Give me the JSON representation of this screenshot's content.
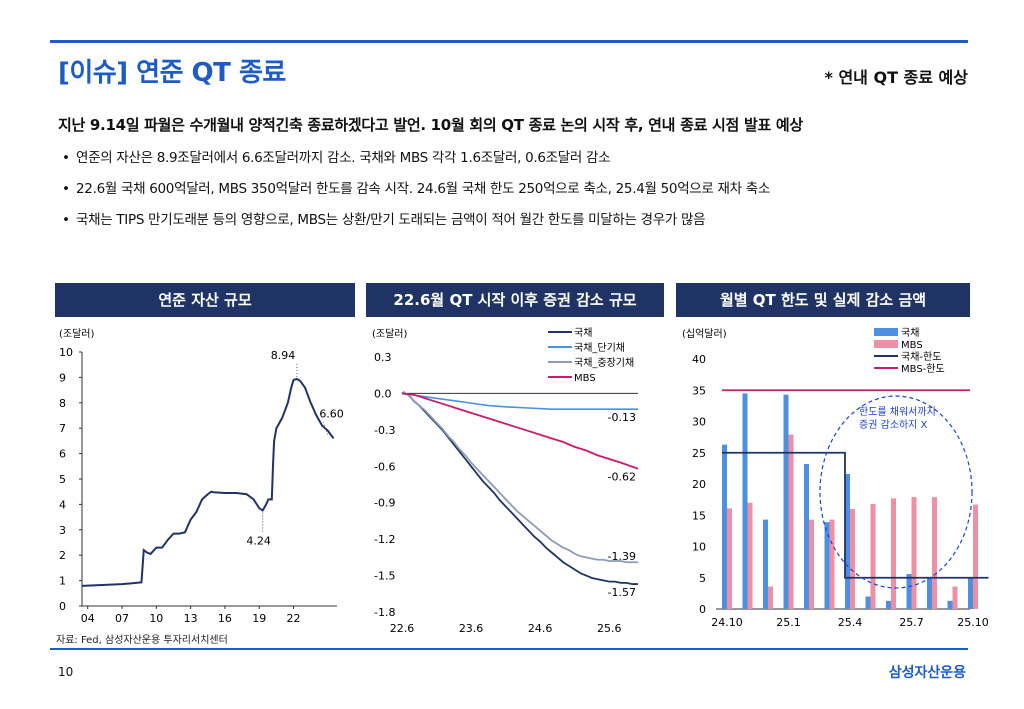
{
  "title": "[이슈] 연준 QT 종료",
  "note": "* 연내 QT 종료 예상",
  "lead": "지난 9.14일 파월은 수개월내 양적긴축 종료하겠다고 발언. 10월 회의 QT 종료 논의 시작 후, 연내 종료 시점 발표 예상",
  "bullets": [
    "연준의 자산은 8.9조달러에서 6.6조달러까지 감소. 국채와 MBS 각각 1.6조달러, 0.6조달러 감소",
    "22.6월 국채 600억달러, MBS 350억달러 한도를 감속 시작. 24.6월 국채 한도 250억으로 축소, 25.4월 50억으로 재차 축소",
    "국채는 TIPS 만기도래분 등의 영향으로, MBS는 상환/만기 도래되는 금액이 적어 월간 한도를 미달하는 경우가 많음"
  ],
  "source": "자료: Fed, 삼성자산운용 투자리서치센터",
  "page_number": "10",
  "brand": "삼성자산운용",
  "colors": {
    "accent": "#1d5bc7",
    "header_bg": "#1f3365",
    "navy": "#1f3365",
    "light_blue": "#4d8fe0",
    "pink": "#ee8fa4",
    "magenta": "#c81d6e",
    "gray_blue": "#8c9bb8"
  },
  "chart_data": [
    {
      "type": "line",
      "title": "연준 자산 규모",
      "unit": "(조달러)",
      "x_ticks": [
        "04",
        "07",
        "10",
        "13",
        "16",
        "19",
        "22"
      ],
      "y_ticks": [
        "0",
        "1",
        "2",
        "3",
        "4",
        "5",
        "6",
        "7",
        "8",
        "9",
        "10"
      ],
      "ylim": [
        0,
        10
      ],
      "xlim": [
        2003.5,
        2025.8
      ],
      "series": [
        {
          "x": [
            2003.5,
            2005,
            2007,
            2008.0,
            2008.7,
            2008.9,
            2009.2,
            2009.5,
            2010,
            2010.5,
            2011,
            2011.5,
            2012,
            2012.5,
            2013,
            2013.5,
            2014,
            2014.5,
            2014.8,
            2015,
            2016,
            2017,
            2017.9,
            2018.5,
            2019.0,
            2019.3,
            2019.6,
            2019.8,
            2020.1,
            2020.2,
            2020.3,
            2020.5,
            2021,
            2021.5,
            2021.8,
            2022.0,
            2022.3,
            2022.6,
            2023,
            2023.5,
            2024,
            2024.5,
            2025,
            2025.5
          ],
          "y": [
            0.79,
            0.82,
            0.86,
            0.9,
            0.93,
            2.2,
            2.1,
            2.05,
            2.3,
            2.3,
            2.6,
            2.85,
            2.85,
            2.9,
            3.4,
            3.7,
            4.2,
            4.4,
            4.5,
            4.48,
            4.45,
            4.45,
            4.4,
            4.2,
            3.85,
            3.76,
            4.0,
            4.2,
            4.2,
            5.5,
            6.5,
            7.0,
            7.4,
            8.0,
            8.6,
            8.9,
            8.94,
            8.85,
            8.6,
            8.0,
            7.5,
            7.1,
            6.9,
            6.6
          ]
        }
      ],
      "annotations": [
        "8.94",
        "6.60",
        "4.24"
      ]
    },
    {
      "type": "line",
      "title": "22.6월 QT 시작 이후 증권 감소 규모",
      "unit": "(조달러)",
      "x_ticks": [
        "22.6",
        "23.6",
        "24.6",
        "25.6"
      ],
      "y_ticks": [
        "0.3",
        "0.0",
        "-0.3",
        "-0.6",
        "-0.9",
        "-1.2",
        "-1.5",
        "-1.8"
      ],
      "ylim": [
        -1.8,
        0.3
      ],
      "series": [
        {
          "name": "국채",
          "x": [
            0,
            0.3,
            0.5,
            1,
            1.5,
            2,
            3,
            4,
            5,
            6,
            7,
            8,
            9,
            10,
            11,
            12,
            13,
            14,
            15,
            16,
            17,
            18,
            19,
            20,
            21,
            22,
            23,
            24,
            25,
            26,
            27,
            28,
            29,
            30,
            31,
            32,
            33,
            34,
            35,
            36,
            37,
            38,
            39,
            40,
            41
          ],
          "y": [
            0,
            0.01,
            0,
            -0.01,
            -0.03,
            -0.06,
            -0.1,
            -0.15,
            -0.2,
            -0.25,
            -0.3,
            -0.36,
            -0.42,
            -0.48,
            -0.54,
            -0.6,
            -0.66,
            -0.72,
            -0.77,
            -0.82,
            -0.88,
            -0.93,
            -0.98,
            -1.03,
            -1.08,
            -1.13,
            -1.18,
            -1.22,
            -1.27,
            -1.31,
            -1.35,
            -1.39,
            -1.42,
            -1.45,
            -1.48,
            -1.5,
            -1.52,
            -1.53,
            -1.54,
            -1.55,
            -1.55,
            -1.56,
            -1.56,
            -1.57,
            -1.57
          ]
        },
        {
          "name": "국채_단기채",
          "x": [
            0,
            3,
            6,
            9,
            12,
            15,
            18,
            22,
            26,
            30,
            35,
            41
          ],
          "y": [
            0,
            -0.02,
            -0.04,
            -0.06,
            -0.08,
            -0.1,
            -0.11,
            -0.12,
            -0.13,
            -0.13,
            -0.13,
            -0.13
          ]
        },
        {
          "name": "국채_중장기채",
          "x": [
            0,
            0.3,
            0.5,
            1,
            1.5,
            2,
            3,
            4,
            5,
            6,
            7,
            8,
            9,
            10,
            11,
            12,
            13,
            14,
            15,
            16,
            17,
            18,
            19,
            20,
            21,
            22,
            23,
            24,
            25,
            26,
            27,
            28,
            29,
            30,
            31,
            32,
            33,
            34,
            35,
            36,
            37,
            38,
            39,
            40,
            41
          ],
          "y": [
            0,
            0.01,
            0,
            -0.01,
            -0.03,
            -0.06,
            -0.1,
            -0.14,
            -0.19,
            -0.24,
            -0.29,
            -0.35,
            -0.4,
            -0.46,
            -0.51,
            -0.57,
            -0.62,
            -0.67,
            -0.72,
            -0.77,
            -0.82,
            -0.87,
            -0.92,
            -0.97,
            -1.01,
            -1.05,
            -1.09,
            -1.13,
            -1.17,
            -1.21,
            -1.24,
            -1.27,
            -1.29,
            -1.32,
            -1.34,
            -1.35,
            -1.36,
            -1.37,
            -1.37,
            -1.38,
            -1.38,
            -1.38,
            -1.39,
            -1.39,
            -1.39
          ]
        },
        {
          "name": "MBS",
          "x": [
            0,
            2,
            4,
            6,
            8,
            10,
            12,
            14,
            16,
            18,
            20,
            22,
            24,
            26,
            28,
            30,
            32,
            34,
            36,
            38,
            41
          ],
          "y": [
            0,
            -0.01,
            -0.04,
            -0.07,
            -0.1,
            -0.13,
            -0.16,
            -0.19,
            -0.22,
            -0.25,
            -0.28,
            -0.31,
            -0.34,
            -0.37,
            -0.4,
            -0.44,
            -0.47,
            -0.51,
            -0.54,
            -0.57,
            -0.62
          ]
        }
      ],
      "end_labels": [
        "-0.13",
        "-0.62",
        "-1.39",
        "-1.57"
      ]
    },
    {
      "type": "bar",
      "title": "월별 QT 한도 및 실제 감소 금액",
      "unit": "(십억달러)",
      "x_ticks": [
        "24.10",
        "25.1",
        "25.4",
        "25.7",
        "25.10"
      ],
      "y_ticks": [
        "0",
        "5",
        "10",
        "15",
        "20",
        "25",
        "30",
        "35",
        "40"
      ],
      "ylim": [
        0,
        40
      ],
      "categories": [
        "24.10",
        "24.11",
        "24.12",
        "25.1",
        "25.2",
        "25.3",
        "25.4",
        "25.5",
        "25.6",
        "25.7",
        "25.8",
        "25.9",
        "25.10"
      ],
      "series": [
        {
          "name": "국채",
          "values": [
            26.3,
            34.5,
            14.3,
            34.3,
            23.2,
            13.9,
            21.6,
            2.0,
            1.3,
            5.6,
            5.0,
            1.3,
            5.0
          ]
        },
        {
          "name": "MBS",
          "values": [
            16.1,
            17.0,
            3.6,
            27.9,
            14.3,
            14.3,
            16.0,
            16.8,
            17.7,
            17.9,
            17.9,
            3.6,
            16.7
          ]
        },
        {
          "name": "국채-한도",
          "values": [
            25,
            25,
            25,
            25,
            25,
            25,
            5,
            5,
            5,
            5,
            5,
            5,
            5
          ]
        },
        {
          "name": "MBS-한도",
          "values": [
            35,
            35,
            35,
            35,
            35,
            35,
            35,
            35,
            35,
            35,
            35,
            35,
            35
          ]
        }
      ],
      "annotation": "한도를 채워서까지\n증권 감소하지 X"
    }
  ]
}
